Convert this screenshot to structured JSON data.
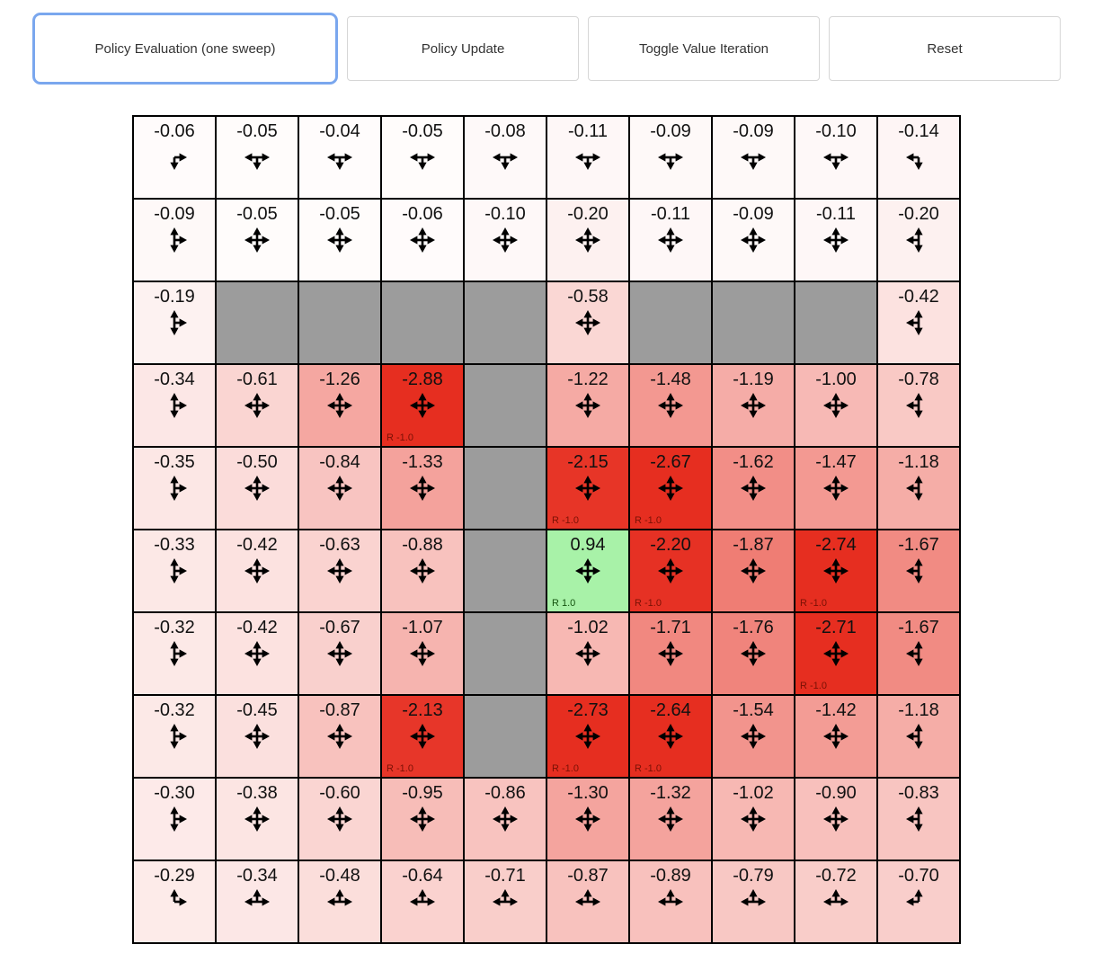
{
  "toolbar": {
    "buttons": [
      {
        "label": "Policy Evaluation (one sweep)",
        "active": true
      },
      {
        "label": "Policy Update",
        "active": false
      },
      {
        "label": "Toggle Value Iteration",
        "active": false
      },
      {
        "label": "Reset",
        "active": false
      }
    ],
    "active_border_color": "#7aa7ee"
  },
  "colors": {
    "negative": "#e62e20",
    "positive": "#90ee90",
    "wall": "#9c9c9c",
    "grid_line": "#000000",
    "value_text": "#111111",
    "reward_negative_text": "#7a1105",
    "reward_positive_text": "#14530f",
    "arrow": "#000000"
  },
  "grid": {
    "rows": 10,
    "cols": 10,
    "cells": [
      {
        "v": "-0.06",
        "a": "DR"
      },
      {
        "v": "-0.05",
        "a": "DLR"
      },
      {
        "v": "-0.04",
        "a": "DLR"
      },
      {
        "v": "-0.05",
        "a": "DLR"
      },
      {
        "v": "-0.08",
        "a": "DLR"
      },
      {
        "v": "-0.11",
        "a": "DLR"
      },
      {
        "v": "-0.09",
        "a": "DLR"
      },
      {
        "v": "-0.09",
        "a": "DLR"
      },
      {
        "v": "-0.10",
        "a": "DLR"
      },
      {
        "v": "-0.14",
        "a": "DL"
      },
      {
        "v": "-0.09",
        "a": "UDR"
      },
      {
        "v": "-0.05",
        "a": "UDLR"
      },
      {
        "v": "-0.05",
        "a": "UDLR"
      },
      {
        "v": "-0.06",
        "a": "UDLR"
      },
      {
        "v": "-0.10",
        "a": "UDLR"
      },
      {
        "v": "-0.20",
        "a": "UDLR"
      },
      {
        "v": "-0.11",
        "a": "UDLR"
      },
      {
        "v": "-0.09",
        "a": "UDLR"
      },
      {
        "v": "-0.11",
        "a": "UDLR"
      },
      {
        "v": "-0.20",
        "a": "UDL"
      },
      {
        "v": "-0.19",
        "a": "UDR"
      },
      {
        "wall": true
      },
      {
        "wall": true
      },
      {
        "wall": true
      },
      {
        "wall": true
      },
      {
        "v": "-0.58",
        "a": "UDLR"
      },
      {
        "wall": true
      },
      {
        "wall": true
      },
      {
        "wall": true
      },
      {
        "v": "-0.42",
        "a": "UDL"
      },
      {
        "v": "-0.34",
        "a": "UDR"
      },
      {
        "v": "-0.61",
        "a": "UDLR"
      },
      {
        "v": "-1.26",
        "a": "UDLR"
      },
      {
        "v": "-2.88",
        "a": "UDLR",
        "r": "R -1.0"
      },
      {
        "wall": true
      },
      {
        "v": "-1.22",
        "a": "UDLR"
      },
      {
        "v": "-1.48",
        "a": "UDLR"
      },
      {
        "v": "-1.19",
        "a": "UDLR"
      },
      {
        "v": "-1.00",
        "a": "UDLR"
      },
      {
        "v": "-0.78",
        "a": "UDL"
      },
      {
        "v": "-0.35",
        "a": "UDR"
      },
      {
        "v": "-0.50",
        "a": "UDLR"
      },
      {
        "v": "-0.84",
        "a": "UDLR"
      },
      {
        "v": "-1.33",
        "a": "UDLR"
      },
      {
        "wall": true
      },
      {
        "v": "-2.15",
        "a": "UDLR",
        "r": "R -1.0"
      },
      {
        "v": "-2.67",
        "a": "UDLR",
        "r": "R -1.0"
      },
      {
        "v": "-1.62",
        "a": "UDLR"
      },
      {
        "v": "-1.47",
        "a": "UDLR"
      },
      {
        "v": "-1.18",
        "a": "UDL"
      },
      {
        "v": "-0.33",
        "a": "UDR"
      },
      {
        "v": "-0.42",
        "a": "UDLR"
      },
      {
        "v": "-0.63",
        "a": "UDLR"
      },
      {
        "v": "-0.88",
        "a": "UDLR"
      },
      {
        "wall": true
      },
      {
        "v": "0.94",
        "a": "UDLR",
        "r": "R 1.0"
      },
      {
        "v": "-2.20",
        "a": "UDLR",
        "r": "R -1.0"
      },
      {
        "v": "-1.87",
        "a": "UDLR"
      },
      {
        "v": "-2.74",
        "a": "UDLR",
        "r": "R -1.0"
      },
      {
        "v": "-1.67",
        "a": "UDL"
      },
      {
        "v": "-0.32",
        "a": "UDR"
      },
      {
        "v": "-0.42",
        "a": "UDLR"
      },
      {
        "v": "-0.67",
        "a": "UDLR"
      },
      {
        "v": "-1.07",
        "a": "UDLR"
      },
      {
        "wall": true
      },
      {
        "v": "-1.02",
        "a": "UDLR"
      },
      {
        "v": "-1.71",
        "a": "UDLR"
      },
      {
        "v": "-1.76",
        "a": "UDLR"
      },
      {
        "v": "-2.71",
        "a": "UDLR",
        "r": "R -1.0"
      },
      {
        "v": "-1.67",
        "a": "UDL"
      },
      {
        "v": "-0.32",
        "a": "UDR"
      },
      {
        "v": "-0.45",
        "a": "UDLR"
      },
      {
        "v": "-0.87",
        "a": "UDLR"
      },
      {
        "v": "-2.13",
        "a": "UDLR",
        "r": "R -1.0"
      },
      {
        "wall": true
      },
      {
        "v": "-2.73",
        "a": "UDLR",
        "r": "R -1.0"
      },
      {
        "v": "-2.64",
        "a": "UDLR",
        "r": "R -1.0"
      },
      {
        "v": "-1.54",
        "a": "UDLR"
      },
      {
        "v": "-1.42",
        "a": "UDLR"
      },
      {
        "v": "-1.18",
        "a": "UDL"
      },
      {
        "v": "-0.30",
        "a": "UDR"
      },
      {
        "v": "-0.38",
        "a": "UDLR"
      },
      {
        "v": "-0.60",
        "a": "UDLR"
      },
      {
        "v": "-0.95",
        "a": "UDLR"
      },
      {
        "v": "-0.86",
        "a": "UDLR"
      },
      {
        "v": "-1.30",
        "a": "UDLR"
      },
      {
        "v": "-1.32",
        "a": "UDLR"
      },
      {
        "v": "-1.02",
        "a": "UDLR"
      },
      {
        "v": "-0.90",
        "a": "UDLR"
      },
      {
        "v": "-0.83",
        "a": "UDL"
      },
      {
        "v": "-0.29",
        "a": "UR"
      },
      {
        "v": "-0.34",
        "a": "ULR"
      },
      {
        "v": "-0.48",
        "a": "ULR"
      },
      {
        "v": "-0.64",
        "a": "ULR"
      },
      {
        "v": "-0.71",
        "a": "ULR"
      },
      {
        "v": "-0.87",
        "a": "ULR"
      },
      {
        "v": "-0.89",
        "a": "ULR"
      },
      {
        "v": "-0.79",
        "a": "ULR"
      },
      {
        "v": "-0.72",
        "a": "ULR"
      },
      {
        "v": "-0.70",
        "a": "UL"
      }
    ]
  }
}
